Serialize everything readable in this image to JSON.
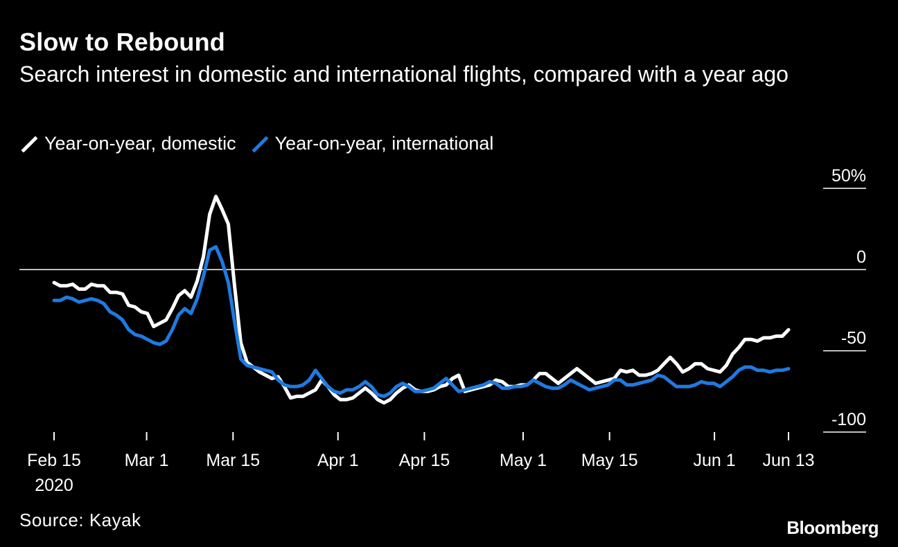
{
  "title": "Slow to Rebound",
  "subtitle": "Search interest in domestic and international flights, compared with a year ago",
  "source": "Source: Kayak",
  "brand": "Bloomberg",
  "colors": {
    "background": "#000000",
    "domestic": "#ffffff",
    "international": "#1f7ae0",
    "text": "#ffffff"
  },
  "chart_data": {
    "type": "line",
    "title": "Slow to Rebound",
    "subtitle": "Search interest in domestic and international flights, compared with a year ago",
    "x_start": "2020-02-15",
    "x_end": "2020-06-13",
    "x_ticks": [
      {
        "label": "Feb 15",
        "sub": "2020",
        "date": "2020-02-15"
      },
      {
        "label": "Mar 1",
        "date": "2020-03-01"
      },
      {
        "label": "Mar 15",
        "date": "2020-03-15"
      },
      {
        "label": "Apr 1",
        "date": "2020-04-01"
      },
      {
        "label": "Apr 15",
        "date": "2020-04-15"
      },
      {
        "label": "May 1",
        "date": "2020-05-01"
      },
      {
        "label": "May 15",
        "date": "2020-05-15"
      },
      {
        "label": "Jun 1",
        "date": "2020-06-01"
      },
      {
        "label": "Jun 13",
        "date": "2020-06-13"
      }
    ],
    "y_ticks": [
      {
        "label": "50%",
        "value": 50
      },
      {
        "label": "0",
        "value": 0
      },
      {
        "label": "-50",
        "value": -50
      },
      {
        "label": "-100",
        "value": -100
      }
    ],
    "ylim": [
      -100,
      50
    ],
    "zero_line": true,
    "legend_position": "top-left",
    "series": [
      {
        "name": "Year-on-year, domestic",
        "color": "#ffffff",
        "values": [
          -8,
          -10,
          -10,
          -9,
          -12,
          -12,
          -9,
          -10,
          -10,
          -14,
          -14,
          -15,
          -22,
          -23,
          -26,
          -27,
          -35,
          -33,
          -31,
          -24,
          -16,
          -13,
          -17,
          -7,
          8,
          34,
          45,
          37,
          28,
          -10,
          -45,
          -57,
          -60,
          -63,
          -65,
          -67,
          -66,
          -72,
          -79,
          -78,
          -78,
          -76,
          -74,
          -68,
          -72,
          -77,
          -80,
          -80,
          -79,
          -76,
          -73,
          -76,
          -80,
          -82,
          -80,
          -76,
          -73,
          -71,
          -74,
          -75,
          -75,
          -74,
          -72,
          -71,
          -67,
          -65,
          -75,
          -74,
          -73,
          -72,
          -71,
          -68,
          -69,
          -72,
          -72,
          -71,
          -71,
          -68,
          -64,
          -64,
          -67,
          -70,
          -67,
          -64,
          -61,
          -64,
          -67,
          -70,
          -69,
          -68,
          -67,
          -62,
          -63,
          -62,
          -65,
          -65,
          -64,
          -62,
          -58,
          -54,
          -58,
          -63,
          -61,
          -58,
          -58,
          -61,
          -62,
          -63,
          -59,
          -52,
          -48,
          -43,
          -43,
          -44,
          -42,
          -42,
          -41,
          -41,
          -37
        ]
      },
      {
        "name": "Year-on-year, international",
        "color": "#1f7ae0",
        "values": [
          -19,
          -19,
          -17,
          -18,
          -20,
          -19,
          -18,
          -19,
          -21,
          -26,
          -28,
          -31,
          -37,
          -40,
          -41,
          -43,
          -45,
          -46,
          -44,
          -37,
          -28,
          -24,
          -27,
          -18,
          -4,
          12,
          14,
          5,
          -8,
          -32,
          -55,
          -59,
          -60,
          -61,
          -62,
          -63,
          -68,
          -71,
          -72,
          -72,
          -71,
          -68,
          -62,
          -67,
          -72,
          -75,
          -76,
          -74,
          -74,
          -72,
          -69,
          -72,
          -77,
          -78,
          -76,
          -72,
          -70,
          -72,
          -75,
          -75,
          -74,
          -73,
          -70,
          -67,
          -71,
          -75,
          -74,
          -73,
          -72,
          -71,
          -69,
          -70,
          -73,
          -73,
          -72,
          -72,
          -71,
          -68,
          -70,
          -72,
          -73,
          -73,
          -71,
          -68,
          -70,
          -72,
          -74,
          -73,
          -72,
          -71,
          -68,
          -68,
          -71,
          -71,
          -70,
          -69,
          -68,
          -65,
          -66,
          -69,
          -72,
          -72,
          -72,
          -71,
          -69,
          -70,
          -70,
          -72,
          -69,
          -66,
          -62,
          -60,
          -60,
          -62,
          -62,
          -63,
          -62,
          -62,
          -61
        ]
      }
    ]
  }
}
